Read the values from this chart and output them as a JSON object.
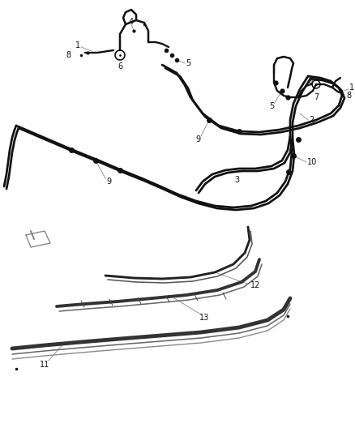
{
  "bg_color": "#ffffff",
  "fig_w": 4.38,
  "fig_h": 5.33,
  "dpi": 100,
  "lc": "#111111",
  "lw": 1.4
}
